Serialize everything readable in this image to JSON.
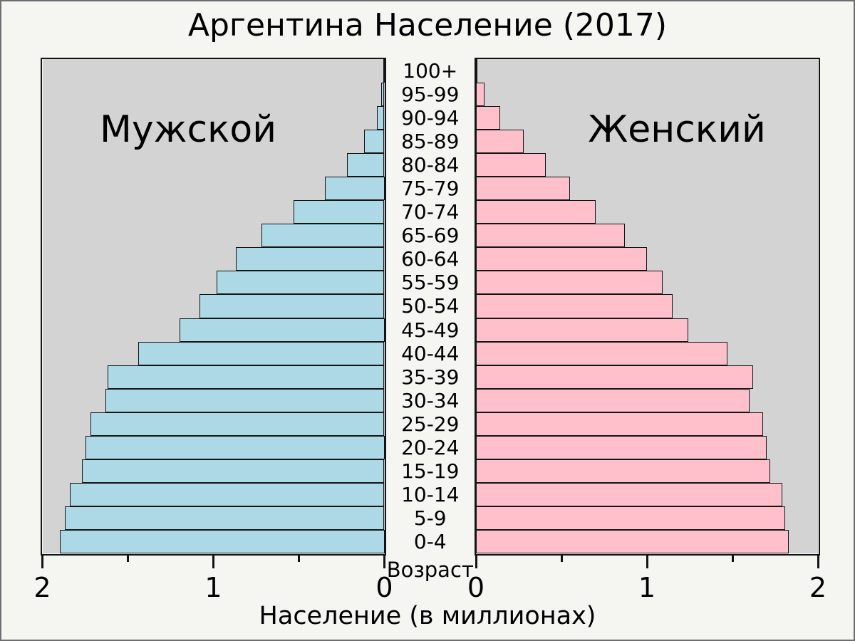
{
  "title": "Аргентина Население (2017)",
  "colors": {
    "male_bar": "#ADD8E6",
    "female_bar": "#FFC0CB",
    "plot_background": "#D3D3D3",
    "figure_background": "#F5F5F2",
    "axis_line": "#141414"
  },
  "chart_data": {
    "type": "bar",
    "subtype": "population-pyramid",
    "title": "Аргентина Население (2017)",
    "xlabel": "Население (в миллионах)",
    "center_axis_label": "Возраст",
    "units": "millions of people",
    "grid": false,
    "legend_position": "none",
    "xlim": [
      0,
      2
    ],
    "x_ticks": [
      {
        "value": 0,
        "label": "0"
      },
      {
        "value": 1,
        "label": "1"
      },
      {
        "value": 2,
        "label": "2"
      }
    ],
    "x_minor_ticks": [
      0.5,
      1.5
    ],
    "categories": [
      "100+",
      "95-99",
      "90-94",
      "85-89",
      "80-84",
      "75-79",
      "70-74",
      "65-69",
      "60-64",
      "55-59",
      "50-54",
      "45-49",
      "40-44",
      "35-39",
      "30-34",
      "25-29",
      "20-24",
      "15-19",
      "10-14",
      "5-9",
      "0-4"
    ],
    "series": [
      {
        "name": "Мужской",
        "side": "left",
        "color": "#ADD8E6",
        "values": [
          0.005,
          0.02,
          0.045,
          0.12,
          0.22,
          0.35,
          0.53,
          0.72,
          0.87,
          0.98,
          1.08,
          1.2,
          1.44,
          1.62,
          1.63,
          1.72,
          1.75,
          1.77,
          1.84,
          1.87,
          1.9
        ]
      },
      {
        "name": "Женский",
        "side": "right",
        "color": "#FFC0CB",
        "values": [
          0.01,
          0.05,
          0.14,
          0.28,
          0.41,
          0.55,
          0.7,
          0.87,
          1.0,
          1.09,
          1.15,
          1.24,
          1.47,
          1.62,
          1.6,
          1.68,
          1.7,
          1.72,
          1.79,
          1.81,
          1.83
        ]
      }
    ]
  }
}
